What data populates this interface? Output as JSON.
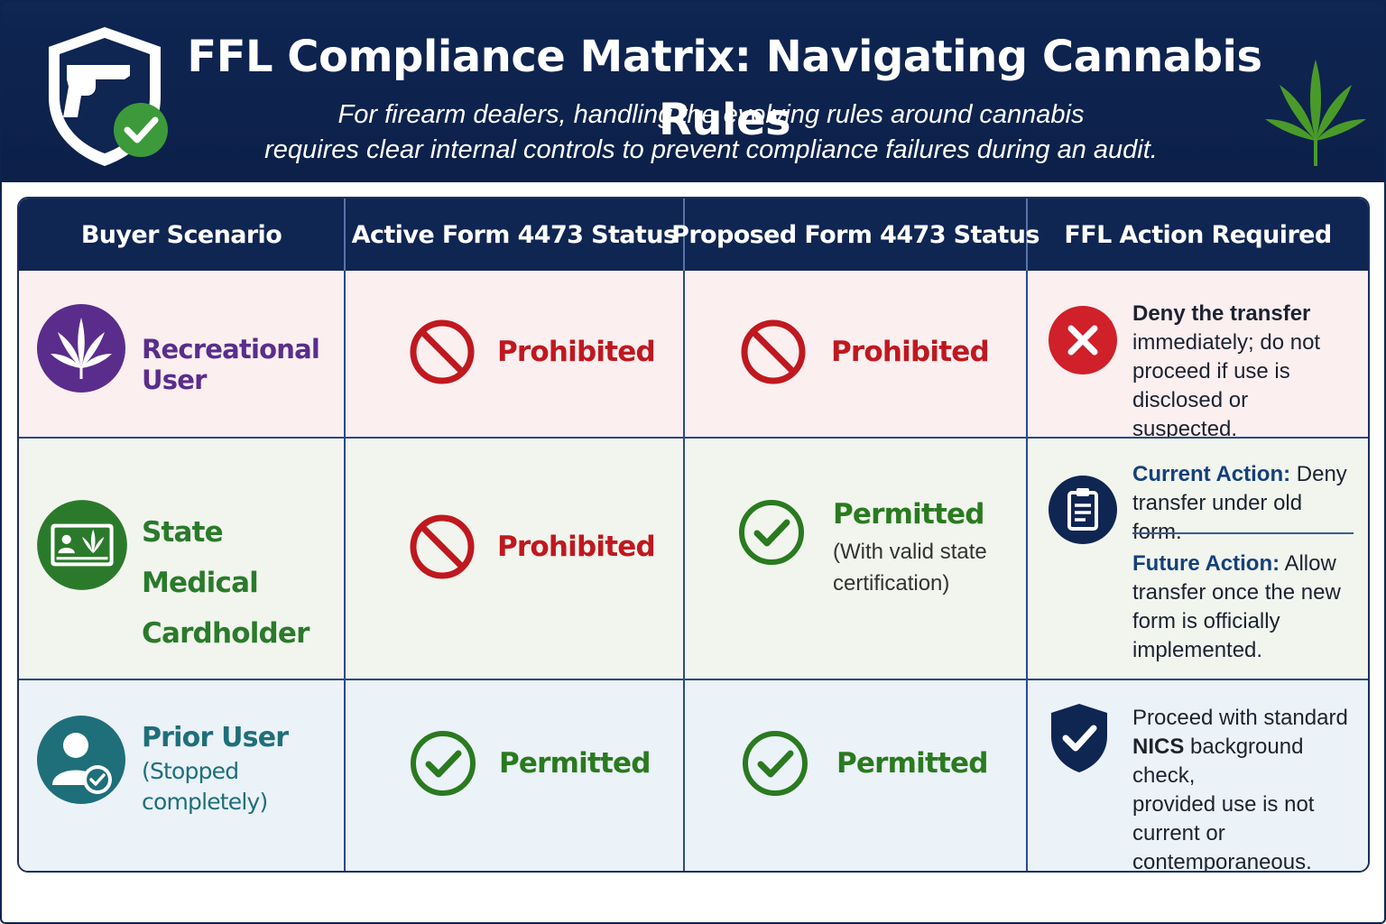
{
  "header": {
    "title": "FFL Compliance Matrix: Navigating Cannabis Rules",
    "subtitle_line1": "For firearm dealers, handling the evolving rules around cannabis",
    "subtitle_line2": "requires clear internal controls to prevent compliance failures during an audit.",
    "logo_icon": "shield-pistol-check-icon",
    "leaf_icon": "cannabis-leaf-icon"
  },
  "colors": {
    "navy": "#0f2552",
    "prohibited_red": "#c0181f",
    "permitted_green": "#2a7a1f",
    "recreational_purple": "#5a2d8c",
    "medical_green": "#2b7a2b",
    "prior_teal": "#1e6f7a"
  },
  "table": {
    "columns": [
      "Buyer Scenario",
      "Active Form 4473 Status",
      "Proposed Form 4473 Status",
      "FFL Action Required"
    ],
    "rows": [
      {
        "scenario": {
          "icon": "cannabis-leaf-icon",
          "line1": "Recreational User"
        },
        "active_status": {
          "icon": "prohibited-icon",
          "label": "Prohibited"
        },
        "proposed_status": {
          "icon": "prohibited-icon",
          "label": "Prohibited"
        },
        "action": {
          "icon": "deny-x-icon",
          "bold": "Deny the transfer",
          "rest_line1": "immediately; do not",
          "rest_line2": "proceed if use is",
          "rest_line3": "disclosed or suspected."
        }
      },
      {
        "scenario": {
          "icon": "medical-card-icon",
          "line1": "State Medical",
          "line2": "Cardholder"
        },
        "active_status": {
          "icon": "prohibited-icon",
          "label": "Prohibited"
        },
        "proposed_status": {
          "icon": "check-circle-icon",
          "label": "Permitted",
          "note_line1": "(With valid state",
          "note_line2": "certification)"
        },
        "action": {
          "icon": "clipboard-icon",
          "current_lead": "Current Action:",
          "current_rest1": "Deny",
          "current_rest2": "transfer under old form.",
          "future_lead": "Future Action:",
          "future_rest1": "Allow",
          "future_rest2": "transfer once the new",
          "future_rest3": "form is officially",
          "future_rest4": "implemented."
        }
      },
      {
        "scenario": {
          "icon": "user-check-icon",
          "line1": "Prior User",
          "line2": "(Stopped",
          "line3": "completely)"
        },
        "active_status": {
          "icon": "check-circle-icon",
          "label": "Permitted"
        },
        "proposed_status": {
          "icon": "check-circle-icon",
          "label": "Permitted"
        },
        "action": {
          "icon": "shield-check-icon",
          "line1": "Proceed with standard",
          "bold": "NICS",
          "line2_rest": "background check,",
          "line3": "provided use is not",
          "line4": "current or",
          "line5": "contemporaneous."
        }
      }
    ]
  }
}
